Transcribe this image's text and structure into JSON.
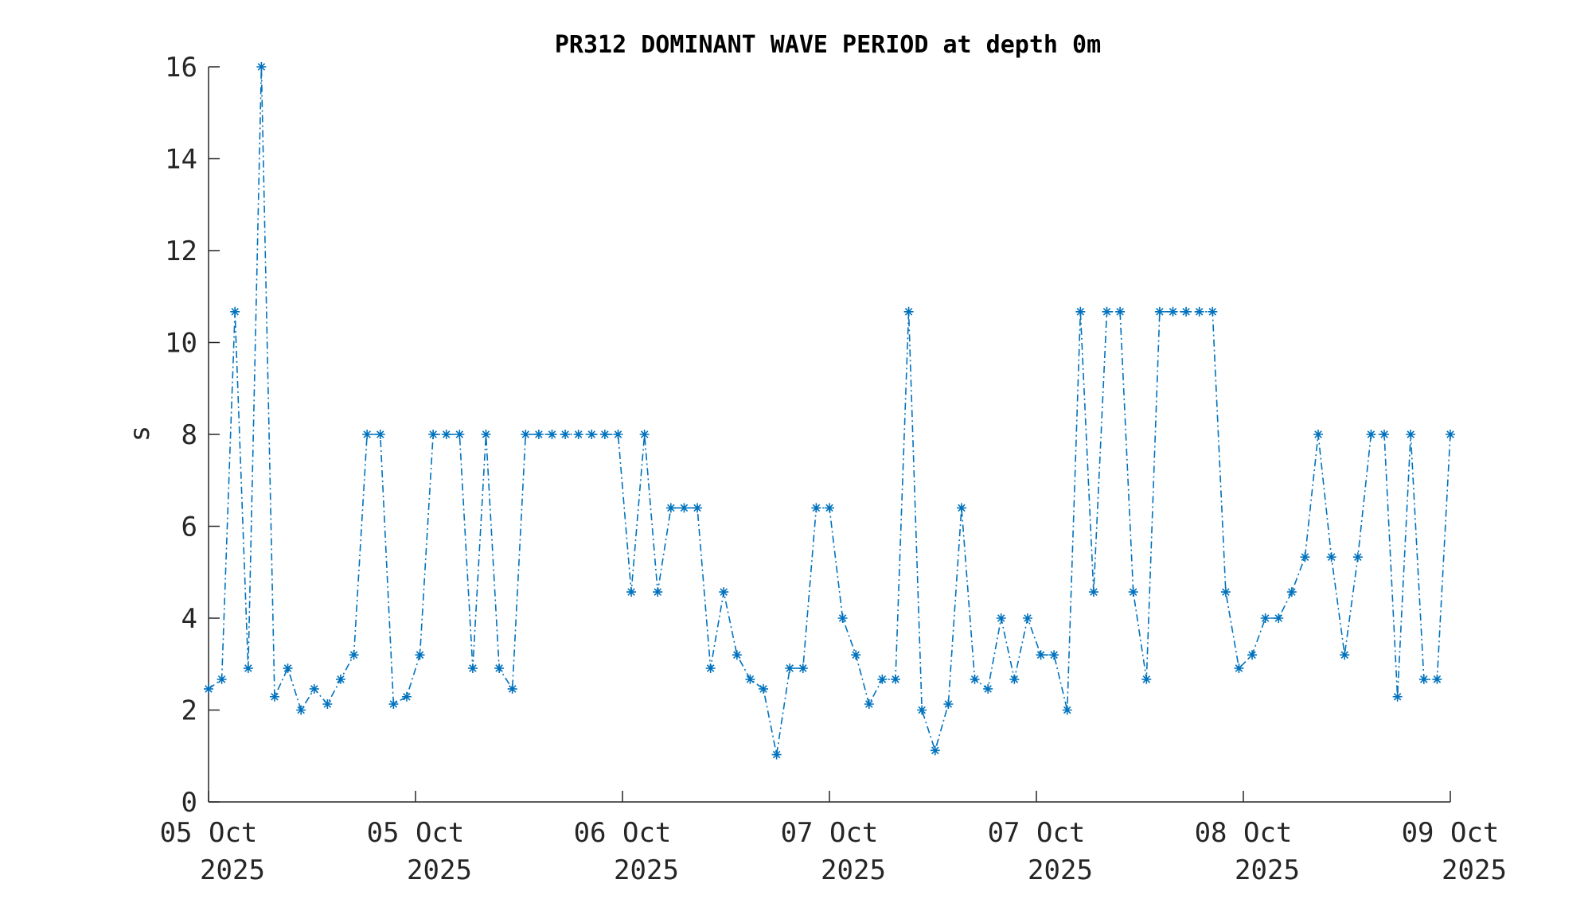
{
  "chart_data": {
    "type": "line",
    "title": "PR312 DOMINANT WAVE PERIOD at depth 0m",
    "xlabel": "",
    "ylabel": "s",
    "ylim": [
      0,
      16
    ],
    "yticks": [
      "0",
      "2",
      "4",
      "6",
      "8",
      "10",
      "12",
      "14",
      "16"
    ],
    "xticks": [
      {
        "line1": "05 Oct",
        "line2": "2025"
      },
      {
        "line1": "05 Oct",
        "line2": "2025"
      },
      {
        "line1": "06 Oct",
        "line2": "2025"
      },
      {
        "line1": "07 Oct",
        "line2": "2025"
      },
      {
        "line1": "07 Oct",
        "line2": "2025"
      },
      {
        "line1": "08 Oct",
        "line2": "2025"
      },
      {
        "line1": "09 Oct",
        "line2": "2025"
      }
    ],
    "grid": false,
    "line_style": "dash-dot",
    "marker": "asterisk",
    "color": "#0072BD",
    "series": [
      {
        "values": [
          2.46,
          2.67,
          10.67,
          2.91,
          16.0,
          2.29,
          2.91,
          2.0,
          2.46,
          2.13,
          2.67,
          3.2,
          8.0,
          8.0,
          2.13,
          2.29,
          3.2,
          8.0,
          8.0,
          8.0,
          2.91,
          8.0,
          2.91,
          2.46,
          8.0,
          8.0,
          8.0,
          8.0,
          8.0,
          8.0,
          8.0,
          8.0,
          4.57,
          8.0,
          4.57,
          6.4,
          6.4,
          6.4,
          2.91,
          4.57,
          3.2,
          2.67,
          2.46,
          1.03,
          2.91,
          2.91,
          6.4,
          6.4,
          4.0,
          3.2,
          2.13,
          2.67,
          2.67,
          10.67,
          2.0,
          1.12,
          2.13,
          6.4,
          2.67,
          2.46,
          4.0,
          2.67,
          4.0,
          3.2,
          3.2,
          2.0,
          10.67,
          4.57,
          10.67,
          10.67,
          4.57,
          2.67,
          10.67,
          10.67,
          10.67,
          10.67,
          10.67,
          4.57,
          2.91,
          3.2,
          4.0,
          4.0,
          4.57,
          5.33,
          8.0,
          5.33,
          3.2,
          5.33,
          8.0,
          8.0,
          2.29,
          8.0,
          2.67,
          2.67,
          8.0
        ]
      }
    ]
  }
}
